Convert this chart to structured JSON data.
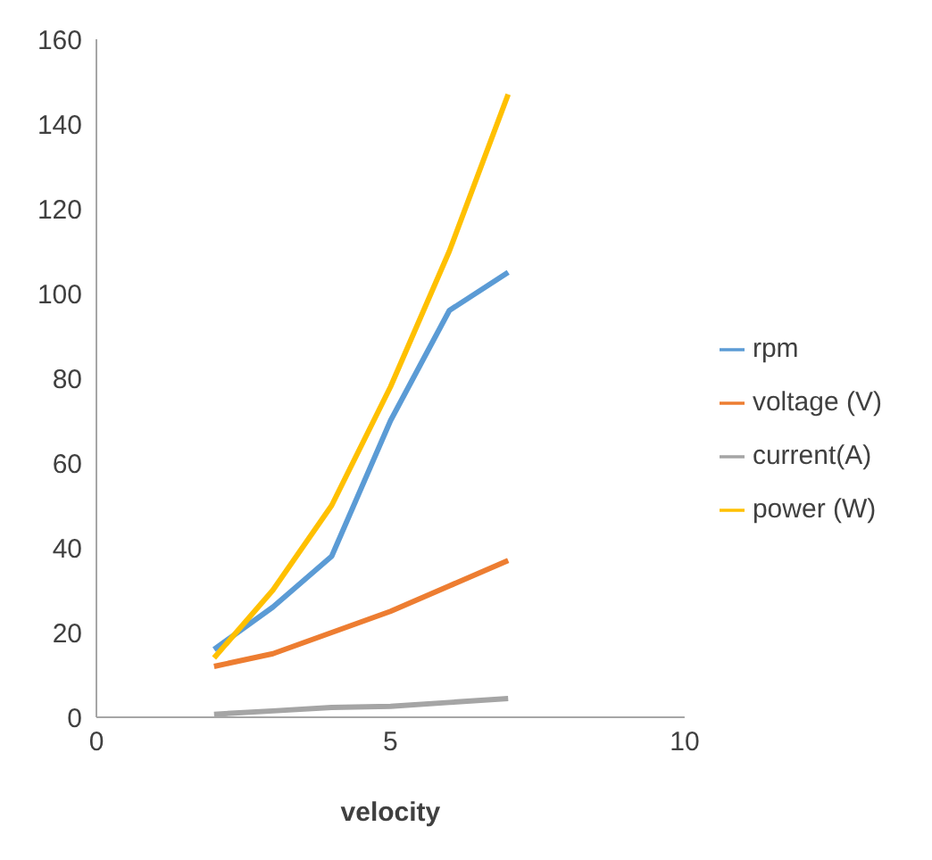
{
  "chart_data": {
    "type": "line",
    "xlabel": "velocity",
    "x": [
      2,
      3,
      4,
      5,
      6,
      7
    ],
    "xlim": [
      0,
      10
    ],
    "xticks": [
      0,
      5,
      10
    ],
    "ylim": [
      0,
      160
    ],
    "yticks": [
      0,
      20,
      40,
      60,
      80,
      100,
      120,
      140,
      160
    ],
    "grid": false,
    "legend": "right",
    "marker": "none",
    "line_style": "solid",
    "series": [
      {
        "name": "rpm",
        "color": "#5b9bd5",
        "values": [
          16,
          26,
          38,
          70,
          96,
          105
        ]
      },
      {
        "name": "voltage (V)",
        "color": "#ed7d31",
        "values": [
          12,
          15,
          20,
          25,
          31,
          37
        ]
      },
      {
        "name": "current(A)",
        "color": "#a5a5a5",
        "values": [
          0.7,
          1.5,
          2.3,
          2.6,
          3.5,
          4.4
        ]
      },
      {
        "name": "power (W)",
        "color": "#ffc000",
        "values": [
          14,
          30,
          50,
          78,
          110,
          147
        ]
      }
    ]
  }
}
